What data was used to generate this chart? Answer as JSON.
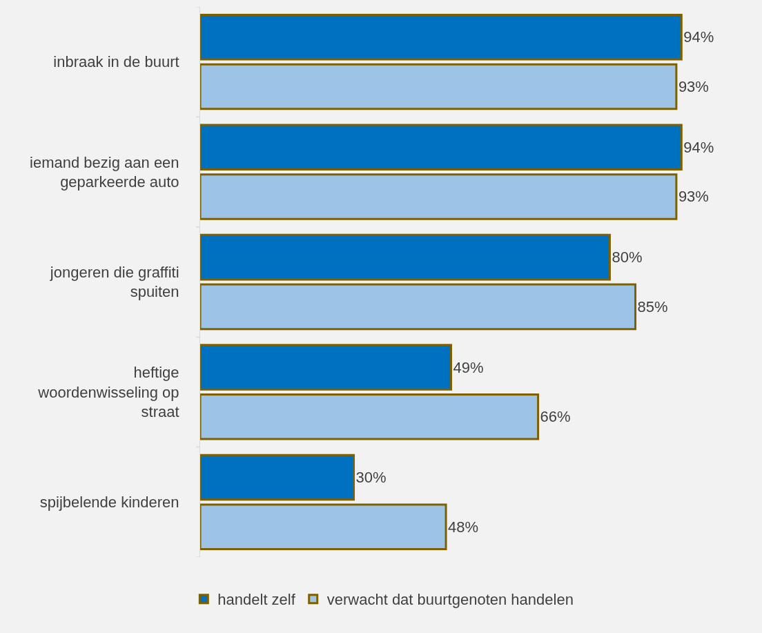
{
  "chart_data": {
    "type": "bar",
    "orientation": "horizontal",
    "categories": [
      "inbraak in de buurt",
      "iemand bezig aan een geparkeerde auto",
      "jongeren die graffiti spuiten",
      "heftige woordenwisseling op straat",
      "spijbelende kinderen"
    ],
    "series": [
      {
        "name": "handelt zelf",
        "color": "#0070c0",
        "values": [
          94,
          94,
          80,
          49,
          30
        ],
        "value_labels": [
          "94%",
          "94%",
          "80%",
          "49%",
          "30%"
        ]
      },
      {
        "name": "verwacht dat buurtgenoten handelen",
        "color": "#9dc3e6",
        "values": [
          93,
          93,
          85,
          66,
          48
        ],
        "value_labels": [
          "93%",
          "93%",
          "85%",
          "66%",
          "48%"
        ]
      }
    ],
    "legend": "bottom",
    "grid": false
  }
}
